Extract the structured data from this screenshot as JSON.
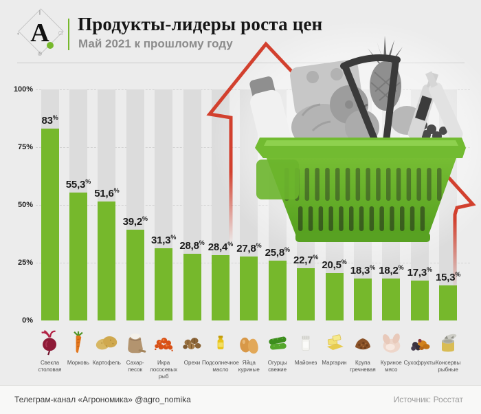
{
  "colors": {
    "green": "#76b82c",
    "bar_track": "#dcdcdc",
    "background": "#ececec",
    "arrow_red": "#d2402e",
    "title_text": "#151515",
    "subtitle_text": "#8b8b8b"
  },
  "header": {
    "title": "Продукты-лидеры роста цен",
    "subtitle": "Май 2021 к прошлому году",
    "logo_letter": "А",
    "logo_reg": "®"
  },
  "axis": {
    "ticks": [
      {
        "label": "100%",
        "value": 100
      },
      {
        "label": "75%",
        "value": 75
      },
      {
        "label": "50%",
        "value": 50
      },
      {
        "label": "25%",
        "value": 25
      },
      {
        "label": "0%",
        "value": 0
      }
    ]
  },
  "chart_data": {
    "type": "bar",
    "title": "Продукты-лидеры роста цен",
    "subtitle": "Май 2021 к прошлому году",
    "unit": "%",
    "ylim": [
      0,
      100
    ],
    "grid": "horizontal dashed at 25/50/75/100",
    "legend": "none",
    "categories": [
      "Свекла столовая",
      "Морковь",
      "Картофель",
      "Сахар-песок",
      "Икра лососевых рыб",
      "Орехи",
      "Подсолнечное масло",
      "Яйца куриные",
      "Огурцы свежие",
      "Майонез",
      "Маргарин",
      "Крупа гречневая",
      "Куриное мясо",
      "Сухофрукты",
      "Консервы рыбные"
    ],
    "category_lines": [
      "Свекла\nстоловая",
      "Морковь",
      "Картофель",
      "Сахар-\nпесок",
      "Икра\nлососевых\nрыб",
      "Орехи",
      "Подсолнечное\nмасло",
      "Яйца\nкуриные",
      "Огурцы\nсвежие",
      "Майонез",
      "Маргарин",
      "Крупа\nгречневая",
      "Куриное\nмясо",
      "Сухофрукты",
      "Консервы\nрыбные"
    ],
    "values": [
      83,
      55.3,
      51.6,
      39.2,
      31.3,
      28.8,
      28.4,
      27.8,
      25.8,
      22.7,
      20.5,
      18.3,
      18.2,
      17.3,
      15.3
    ],
    "value_labels": [
      "83",
      "55,3",
      "51,6",
      "39,2",
      "31,3",
      "28,8",
      "28,4",
      "27,8",
      "25,8",
      "22,7",
      "20,5",
      "18,3",
      "18,2",
      "17,3",
      "15,3"
    ],
    "percent_sign": "%",
    "icons": [
      "beet-icon",
      "carrot-icon",
      "potato-icon",
      "sugar-sack-icon",
      "caviar-icon",
      "nuts-icon",
      "sunflower-oil-icon",
      "eggs-icon",
      "cucumbers-icon",
      "mayonnaise-icon",
      "margarine-icon",
      "buckwheat-icon",
      "chicken-icon",
      "dried-fruits-icon",
      "canned-fish-icon"
    ]
  },
  "footer": {
    "left": "Телеграм-канал «Агрономика» @agro_nomika",
    "right": "Источник: Росстат"
  }
}
